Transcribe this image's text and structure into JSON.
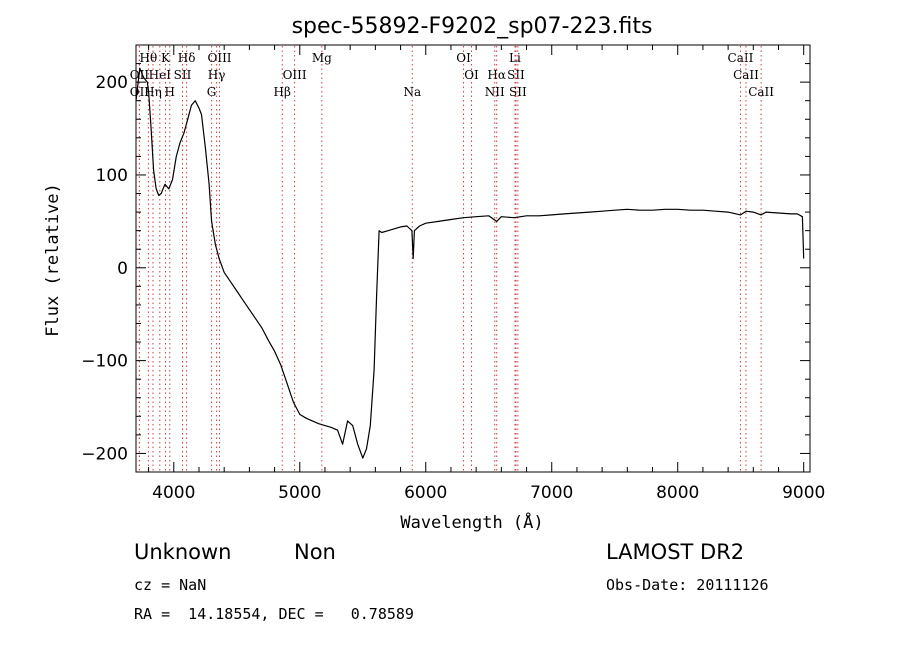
{
  "chart_data": {
    "type": "line",
    "title": "spec-55892-F9202_sp07-223.fits",
    "xlabel": "Wavelength (Å)",
    "ylabel": "Flux (relative)",
    "xlim": [
      3700,
      9050
    ],
    "ylim": [
      -220,
      240
    ],
    "x_ticks": [
      4000,
      5000,
      6000,
      7000,
      8000,
      9000
    ],
    "y_ticks": [
      -200,
      -100,
      0,
      100,
      200
    ],
    "x_tick_labels": [
      "4000",
      "5000",
      "6000",
      "7000",
      "8000",
      "9000"
    ],
    "y_tick_labels": [
      "−200",
      "−100",
      "0",
      "100",
      "200"
    ],
    "grid": false,
    "series": [
      {
        "x": [
          3700,
          3730,
          3760,
          3790,
          3800,
          3820,
          3840,
          3860,
          3880,
          3900,
          3930,
          3960,
          3990,
          4020,
          4050,
          4080,
          4110,
          4140,
          4170,
          4200,
          4220,
          4250,
          4280,
          4300,
          4330,
          4360,
          4400,
          4450,
          4500,
          4550,
          4600,
          4650,
          4700,
          4750,
          4800,
          4850,
          4900,
          4950,
          5000,
          5050,
          5100,
          5150,
          5200,
          5250,
          5300,
          5340,
          5380,
          5420,
          5460,
          5500,
          5530,
          5560,
          5590,
          5610,
          5630,
          5650,
          5700,
          5750,
          5800,
          5850,
          5890,
          5900,
          5910,
          5950,
          6000,
          6100,
          6200,
          6300,
          6400,
          6500,
          6563,
          6600,
          6700,
          6800,
          6900,
          7000,
          7100,
          7200,
          7300,
          7400,
          7500,
          7600,
          7700,
          7800,
          7900,
          8000,
          8100,
          8200,
          8300,
          8400,
          8498,
          8542,
          8600,
          8662,
          8700,
          8800,
          8900,
          8950,
          8990,
          9000
        ],
        "y": [
          180,
          215,
          205,
          200,
          190,
          150,
          105,
          85,
          78,
          80,
          90,
          85,
          95,
          120,
          135,
          145,
          160,
          175,
          180,
          172,
          165,
          130,
          90,
          50,
          25,
          10,
          -5,
          -15,
          -25,
          -35,
          -45,
          -55,
          -65,
          -78,
          -90,
          -105,
          -125,
          -145,
          -158,
          -162,
          -165,
          -168,
          -170,
          -172,
          -175,
          -190,
          -165,
          -170,
          -190,
          -205,
          -195,
          -170,
          -110,
          -30,
          40,
          38,
          40,
          42,
          44,
          45,
          40,
          10,
          40,
          45,
          48,
          50,
          52,
          54,
          55,
          56,
          50,
          55,
          54,
          56,
          56,
          57,
          58,
          59,
          60,
          61,
          62,
          63,
          62,
          62,
          63,
          63,
          62,
          62,
          61,
          60,
          57,
          61,
          60,
          57,
          60,
          59,
          58,
          58,
          55,
          10
        ]
      }
    ],
    "line_markers": [
      {
        "label": "Hθ",
        "wave": 3798,
        "row": 1
      },
      {
        "label": "K",
        "wave": 3934,
        "row": 1
      },
      {
        "label": "Hδ",
        "wave": 4102,
        "row": 1
      },
      {
        "label": "OIII",
        "wave": 4363,
        "row": 1
      },
      {
        "label": "Mg",
        "wave": 5175,
        "row": 1
      },
      {
        "label": "OI",
        "wave": 6300,
        "row": 1
      },
      {
        "label": "Li",
        "wave": 6708,
        "row": 1
      },
      {
        "label": "CaII",
        "wave": 8498,
        "row": 1
      },
      {
        "label": "OII",
        "wave": 3727,
        "row": 2
      },
      {
        "label": "HeI",
        "wave": 3889,
        "row": 2
      },
      {
        "label": "SII",
        "wave": 4069,
        "row": 2
      },
      {
        "label": "Hγ",
        "wave": 4340,
        "row": 2
      },
      {
        "label": "OIII",
        "wave": 4959,
        "row": 2
      },
      {
        "label": "OI",
        "wave": 6363,
        "row": 2
      },
      {
        "label": "Hα",
        "wave": 6563,
        "row": 2
      },
      {
        "label": "SII",
        "wave": 6716,
        "row": 2
      },
      {
        "label": "CaII",
        "wave": 8542,
        "row": 2
      },
      {
        "label": "OII",
        "wave": 3727,
        "row": 3
      },
      {
        "label": "Hη",
        "wave": 3835,
        "row": 3
      },
      {
        "label": "H",
        "wave": 3968,
        "row": 3
      },
      {
        "label": "G",
        "wave": 4300,
        "row": 3
      },
      {
        "label": "Hβ",
        "wave": 4861,
        "row": 3
      },
      {
        "label": "Na",
        "wave": 5893,
        "row": 3
      },
      {
        "label": "NII",
        "wave": 6548,
        "row": 3
      },
      {
        "label": "SII",
        "wave": 6731,
        "row": 3
      },
      {
        "label": "CaII",
        "wave": 8662,
        "row": 3
      }
    ],
    "marker_color": "#d04040",
    "line_color": "#000000"
  },
  "info": {
    "class_label": "Unknown",
    "subclass_label": "Non",
    "survey_label": "LAMOST DR2",
    "cz_text": "cz = NaN",
    "obs_date_text": "Obs-Date: 20111126",
    "coords_text": "RA =  14.18554, DEC =   0.78589"
  }
}
